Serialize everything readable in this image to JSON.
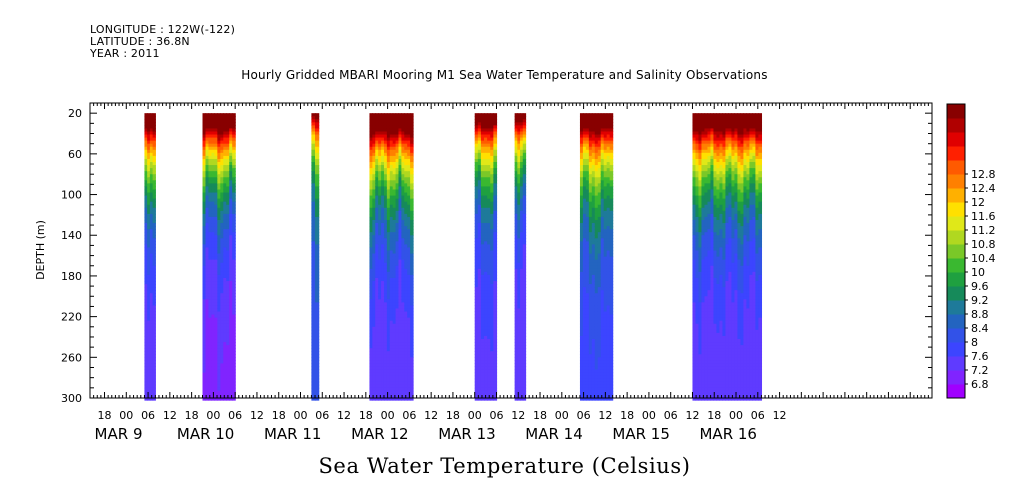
{
  "header": {
    "longitude": "LONGITUDE : 122W(-122)",
    "latitude": "LATITUDE : 36.8N",
    "year": "YEAR : 2011"
  },
  "title": "Hourly Gridded MBARI Mooring M1 Sea Water Temperature and Salinity Observations",
  "colorbar_title": "Sea Water Temperature (Celsius)",
  "chart_data": {
    "type": "heatmap",
    "title": "Hourly Gridded MBARI Mooring M1 Sea Water Temperature and Salinity Observations",
    "ylabel": "DEPTH (m)",
    "ylim": [
      300,
      10
    ],
    "y_ticks": [
      20,
      60,
      100,
      140,
      180,
      220,
      260,
      300
    ],
    "xlim_hours": [
      -10,
      222
    ],
    "x_hour_ticks": [
      "18",
      "00",
      "06",
      "12",
      "18",
      "00",
      "06",
      "12",
      "18",
      "00",
      "06",
      "12",
      "18",
      "00",
      "06",
      "12",
      "18",
      "00",
      "06",
      "12",
      "18",
      "00",
      "06",
      "12",
      "18",
      "00",
      "06",
      "12",
      "18",
      "00",
      "06",
      "12"
    ],
    "x_day_labels": [
      "MAR  9",
      "MAR 10",
      "MAR 11",
      "MAR 12",
      "MAR 13",
      "MAR 14",
      "MAR 15",
      "MAR 16"
    ],
    "x_day_label_offsets_hours": [
      -6,
      18,
      42,
      66,
      90,
      114,
      138,
      162
    ],
    "colorbar_levels": [
      6.8,
      7.2,
      7.6,
      8,
      8.4,
      8.8,
      9.2,
      9.6,
      10,
      10.4,
      10.8,
      11.2,
      11.6,
      12,
      12.4,
      12.8
    ],
    "colorbar_colors": [
      "#a000ff",
      "#8024ff",
      "#5f3bff",
      "#3c45ff",
      "#3252e8",
      "#2364c0",
      "#1e7a9a",
      "#168a5a",
      "#1fa040",
      "#3ab830",
      "#7ac828",
      "#b0d820",
      "#e0e818",
      "#ffe000",
      "#ffb000",
      "#ff8000",
      "#ff5a00",
      "#ff2000",
      "#e00000",
      "#b00000",
      "#880000"
    ],
    "data_gaps_note": "",
    "observation_windows_hours": [
      {
        "start": 5,
        "end": 8,
        "surface_temp": 11.8,
        "thermocline_depth": 70,
        "deep_temp": 7.0
      },
      {
        "start": 21,
        "end": 30,
        "surface_temp": 12.0,
        "thermocline_depth": 75,
        "deep_temp": 6.9
      },
      {
        "start": 51,
        "end": 53,
        "surface_temp": 11.0,
        "thermocline_depth": 65,
        "deep_temp": 7.5
      },
      {
        "start": 67,
        "end": 79,
        "surface_temp": 12.0,
        "thermocline_depth": 80,
        "deep_temp": 7.0
      },
      {
        "start": 96,
        "end": 102,
        "surface_temp": 11.6,
        "thermocline_depth": 70,
        "deep_temp": 7.1
      },
      {
        "start": 107,
        "end": 110,
        "surface_temp": 11.2,
        "thermocline_depth": 65,
        "deep_temp": 7.0
      },
      {
        "start": 125,
        "end": 134,
        "surface_temp": 11.8,
        "thermocline_depth": 75,
        "deep_temp": 7.3
      },
      {
        "start": 156,
        "end": 175,
        "surface_temp": 11.8,
        "thermocline_depth": 80,
        "deep_temp": 7.0
      }
    ]
  }
}
